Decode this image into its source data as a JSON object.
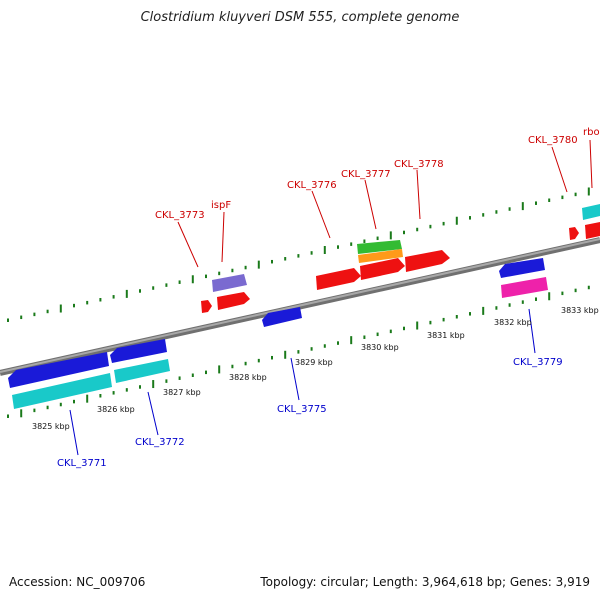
{
  "title": "Clostridium kluyveri DSM 555, complete genome",
  "footer": {
    "accession": "Accession: NC_009706",
    "summary": "Topology: circular; Length: 3,964,618 bp; Genes: 3,919"
  },
  "kbp_labels": [
    "3825 kbp",
    "3826 kbp",
    "3827 kbp",
    "3828 kbp",
    "3829 kbp",
    "3830 kbp",
    "3831 kbp",
    "3832 kbp",
    "3833 kbp"
  ],
  "gene_labels_top": [
    "CKL_3773",
    "ispF",
    "CKL_3776",
    "CKL_3777",
    "CKL_3778",
    "CKL_3780",
    "rbo"
  ],
  "gene_labels_bottom": [
    "CKL_3771",
    "CKL_3772",
    "CKL_3775",
    "CKL_3779"
  ],
  "colors": {
    "top_label": "#cc0000",
    "bottom_label": "#0000cc",
    "tick": "#1a7a1a",
    "backbone": "#808080",
    "red": "#ee1111",
    "blue": "#1a1ad8",
    "cyan": "#19c9c9",
    "purple": "#7a6ad0",
    "green": "#33bb33",
    "orange": "#ff9a1a",
    "pink": "#ee22aa"
  }
}
